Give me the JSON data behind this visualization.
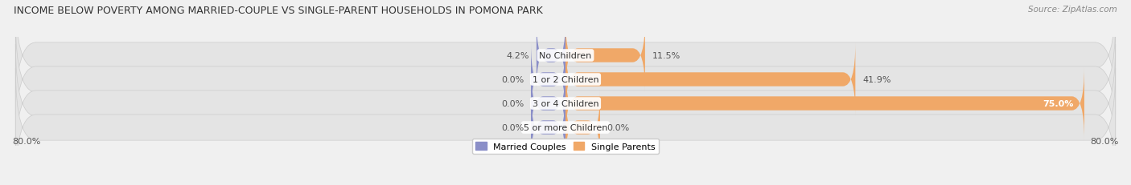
{
  "title": "INCOME BELOW POVERTY AMONG MARRIED-COUPLE VS SINGLE-PARENT HOUSEHOLDS IN POMONA PARK",
  "source": "Source: ZipAtlas.com",
  "categories": [
    "No Children",
    "1 or 2 Children",
    "3 or 4 Children",
    "5 or more Children"
  ],
  "married_values": [
    4.2,
    0.0,
    0.0,
    0.0
  ],
  "single_values": [
    11.5,
    41.9,
    75.0,
    0.0
  ],
  "married_stub": 5.0,
  "single_stub": 5.0,
  "x_min": -80.0,
  "x_max": 80.0,
  "married_color": "#8b8fc8",
  "single_color": "#f0a868",
  "married_label": "Married Couples",
  "single_label": "Single Parents",
  "bg_color": "#f0f0f0",
  "row_bg_color": "#e4e4e4",
  "title_fontsize": 9,
  "source_fontsize": 7.5,
  "bar_label_fontsize": 8,
  "cat_label_fontsize": 8,
  "axis_label_left": "80.0%",
  "axis_label_right": "80.0%"
}
